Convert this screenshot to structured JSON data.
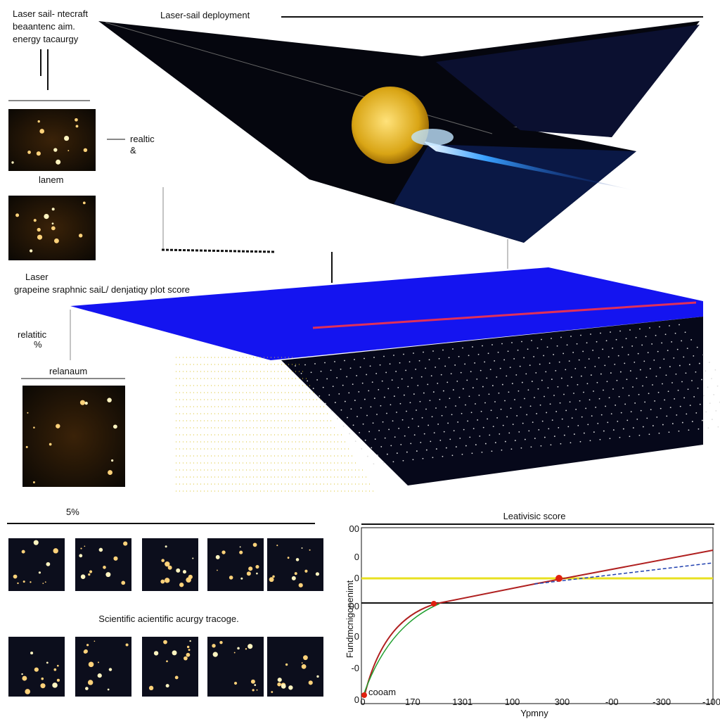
{
  "header": {
    "left_lines": [
      "Laser sail- ntecraft",
      "beaantenc aim.",
      "energy tacaurgy"
    ],
    "title": "Laser-sail deployment"
  },
  "labels": {
    "realtic": "realtic",
    "amp": "&",
    "lanem": "lanem",
    "laser": "Laser",
    "subtitle": "grapeine sraphnic saiL/ denjatiqy plot score",
    "relatitic": "relatitic",
    "percent": "%",
    "relanaum": "relanaum",
    "five": "5%"
  },
  "gallery": {
    "caption": "Scientific acientific acurgy tracoge."
  },
  "plot": {
    "title": "Leativisic score",
    "ylabel": "Fundmcnigonenimt",
    "xlabel": "Ypmny",
    "xticks": [
      "0",
      "170",
      "1301",
      "100",
      "300",
      "-00",
      "-300",
      "-100"
    ],
    "upper_yticks": [
      "00",
      "0",
      "0"
    ],
    "lower_yticks": [
      "00",
      "0",
      "-0",
      "0"
    ],
    "legend": "cooam"
  }
}
